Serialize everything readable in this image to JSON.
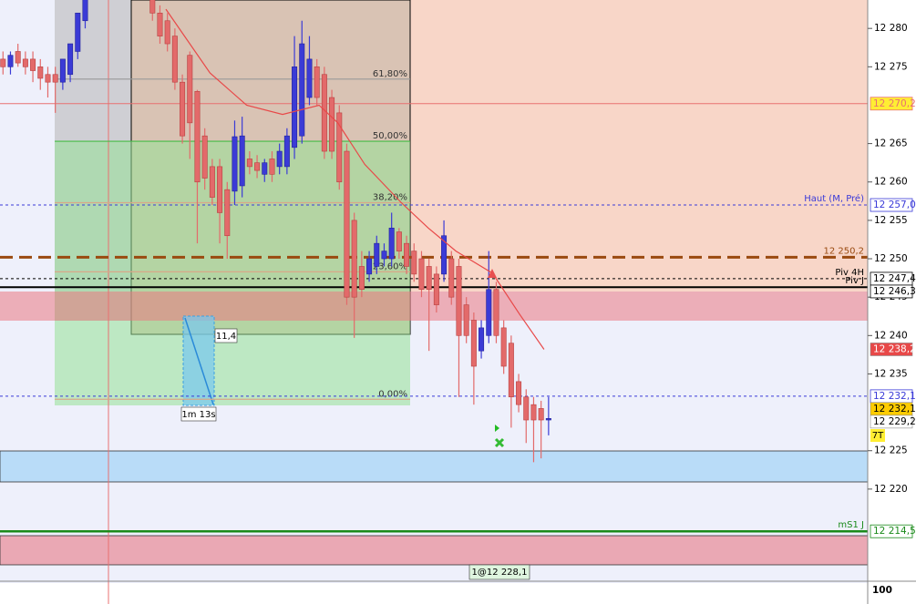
{
  "chart_data": {
    "type": "candlestick",
    "x": [
      0,
      1,
      2,
      3,
      4,
      5,
      6,
      7,
      8,
      9,
      10,
      11,
      20,
      21,
      22,
      23,
      24,
      25,
      26,
      27,
      28,
      29,
      30,
      31,
      32,
      33,
      34,
      35,
      36,
      37,
      38,
      39,
      40,
      41,
      42,
      43,
      44,
      45,
      46,
      47,
      48,
      49,
      50,
      51,
      52,
      53,
      54,
      55,
      56,
      57,
      58,
      59,
      60,
      61,
      62,
      63,
      64,
      65,
      66,
      67,
      68,
      69,
      70,
      71,
      72,
      73
    ],
    "open": [
      12276,
      12275,
      12277,
      12276,
      12276,
      12275,
      12274,
      12274,
      12273,
      12274,
      12277,
      12281,
      12284,
      12282,
      12281,
      12279,
      12273,
      12276.5,
      12271.8,
      12266,
      12262,
      12262,
      12259,
      12258.8,
      12259.5,
      12263,
      12262.5,
      12261,
      12263,
      12262,
      12262,
      12264.5,
      12266,
      12271,
      12275,
      12274,
      12271,
      12269,
      12264,
      12255,
      12249,
      12248,
      12249,
      12250,
      12250,
      12253.5,
      12252,
      12251,
      12250,
      12249,
      12248,
      12248,
      12250,
      12249,
      12244,
      12242,
      12238,
      12240,
      12246,
      12241,
      12239,
      12234,
      12232,
      12231,
      12230.5,
      12229
    ],
    "high": [
      12277,
      12277,
      12278,
      12277,
      12277,
      12276,
      12275,
      12275,
      12276,
      12278,
      12282,
      12284,
      12284,
      12283,
      12282,
      12280,
      12274,
      12277,
      12272,
      12267,
      12263,
      12263,
      12260,
      12268,
      12268.5,
      12264,
      12263.5,
      12263,
      12264,
      12265,
      12267,
      12279,
      12281,
      12279,
      12276,
      12275,
      12272,
      12270,
      12265,
      12256,
      12251,
      12251,
      12253,
      12252,
      12256,
      12254,
      12253,
      12252,
      12251,
      12250,
      12249,
      12255,
      12251,
      12250,
      12245,
      12243,
      12242,
      12251,
      12247,
      12242,
      12240,
      12235,
      12233,
      12232,
      12231.5,
      12232
    ],
    "low": [
      12274,
      12274,
      12275,
      12274,
      12273,
      12272,
      12271,
      12269,
      12272,
      12273,
      12276,
      12280,
      12281,
      12278,
      12277,
      12272,
      12265,
      12263,
      12252,
      12259,
      12257,
      12252,
      12250,
      12257,
      12258,
      12261,
      12260.5,
      12260,
      12260,
      12261,
      12261,
      12263,
      12265,
      12270,
      12270,
      12263,
      12263,
      12259,
      12244,
      12239.7,
      12245,
      12247,
      12248,
      12249,
      12249,
      12250,
      12248,
      12247,
      12245,
      12238,
      12243,
      12247,
      12244,
      12232,
      12239,
      12231,
      12237,
      12239,
      12239,
      12235,
      12228,
      12230,
      12226,
      12223.5,
      12224,
      12227
    ],
    "close": [
      12275,
      12276.5,
      12275.5,
      12275,
      12274.5,
      12273.5,
      12273,
      12273,
      12276,
      12278,
      12282,
      12284,
      12282,
      12279,
      12278,
      12273,
      12266,
      12267.7,
      12260,
      12260.5,
      12258,
      12256,
      12253,
      12265.9,
      12266,
      12262,
      12261.5,
      12262.5,
      12261,
      12264,
      12266,
      12275,
      12278,
      12276,
      12271,
      12264,
      12264,
      12260,
      12245,
      12245,
      12246,
      12250,
      12252,
      12251,
      12254,
      12251,
      12249,
      12248,
      12246,
      12246,
      12244,
      12253,
      12245,
      12240,
      12240,
      12236,
      12241,
      12246,
      12240,
      12236,
      12232,
      12231,
      12229,
      12229,
      12229,
      12229.2
    ],
    "up_color": "#3b3bd6",
    "down_color": "#e36a6a",
    "ma": {
      "color": "#e84848",
      "x": [
        21.8,
        27.7,
        32.6,
        37.4,
        42.3,
        44.8,
        48.4,
        53.3,
        56.9,
        60.6,
        65.5,
        69.1,
        72.4
      ],
      "values": [
        12282.5,
        12274.2,
        12270.0,
        12268.8,
        12270.0,
        12267.7,
        12262.3,
        12257.3,
        12254.0,
        12251.0,
        12248.1,
        12242.8,
        12238.2
      ]
    },
    "xlim": [
      -0.4,
      115.7
    ],
    "ylim": [
      12208,
      12283.7
    ],
    "yticks": [
      {
        "value": 12280,
        "label": "12 280"
      },
      {
        "value": 12275,
        "label": "12 275"
      },
      {
        "value": 12265,
        "label": "12 265"
      },
      {
        "value": 12260,
        "label": "12 260"
      },
      {
        "value": 12255,
        "label": "12 255"
      },
      {
        "value": 12250,
        "label": "12 250"
      },
      {
        "value": 12245,
        "label": "12 245"
      },
      {
        "value": 12240,
        "label": "12 240"
      },
      {
        "value": 12235,
        "label": "12 235"
      },
      {
        "value": 12225,
        "label": "12 225"
      },
      {
        "value": 12220,
        "label": "12 220"
      }
    ],
    "levels": [
      {
        "value": 12270.2,
        "price_label": "12 270,2",
        "color": "#e87070",
        "box": "#ffee33",
        "style": "solid"
      },
      {
        "value": 12257.0,
        "label": "Haut (M, Pré)",
        "price_label": "12 257,0",
        "color": "#3a3ad8",
        "box": "#ffffff",
        "style": "dashed"
      },
      {
        "value": 12250.2,
        "label": "12 250,2",
        "color": "#9a4a10",
        "style": "thick-dashed"
      },
      {
        "value": 12247.4,
        "label": "Piv 4H",
        "price_label": "12 247,4",
        "color": "#000000",
        "box": "#ffffff",
        "style": "dashed"
      },
      {
        "value": 12246.3,
        "label": "Piv J",
        "price_label": "12 246,3",
        "color": "#000000",
        "box": "#ffffff",
        "style": "thick"
      },
      {
        "value": 12232.1,
        "price_label": "12 232,1",
        "color": "#3a3ad8",
        "box": "#ffffff",
        "style": "dashed"
      },
      {
        "value": 12214.5,
        "label": "mS1 J",
        "price_label": "12 214,5",
        "color": "#1a8a1a",
        "box": "#ffffff",
        "style": "double"
      }
    ],
    "price_tags": [
      {
        "value": 12238.2,
        "label": "12 238,2",
        "color": "#e84848"
      },
      {
        "value": 12232.1,
        "label": "12 232,1",
        "color": "#ffcc00"
      },
      {
        "value": 12229.2,
        "label": "12 229,2",
        "color": "#ffffff"
      }
    ],
    "fib_levels": [
      {
        "value": 12273.4,
        "label": "61,80%",
        "color": "#999999"
      },
      {
        "value": 12265.3,
        "label": "50,00%",
        "color": "#44bb44"
      },
      {
        "value": 12257.3,
        "label": "38,20%",
        "color": "#d8a888"
      },
      {
        "value": 12248.3,
        "label": "23,60%",
        "color": "#d8a888"
      },
      {
        "value": 12231.7,
        "label": "0,00%",
        "color": "#d8a888"
      }
    ],
    "measure_value": "11,4",
    "measure_time": "1m 13s",
    "tag_7t": "7T",
    "order_label": "1@12 228,1",
    "volume_label": "100"
  }
}
